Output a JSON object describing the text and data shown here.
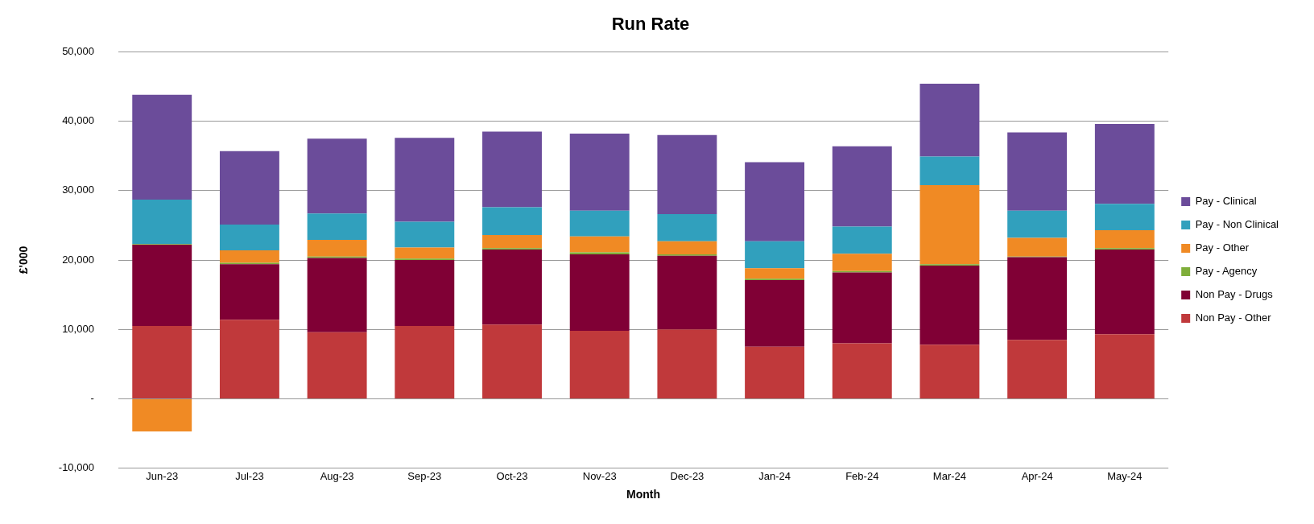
{
  "chart_data": {
    "type": "bar",
    "title": "Run Rate",
    "xlabel": "Month",
    "ylabel": "£'000",
    "categories": [
      "Jun-23",
      "Jul-23",
      "Aug-23",
      "Sep-23",
      "Oct-23",
      "Nov-23",
      "Dec-23",
      "Jan-24",
      "Feb-24",
      "Mar-24",
      "Apr-24",
      "May-24"
    ],
    "stacked": true,
    "grid": "y",
    "legend": "right",
    "ylim": [
      -10000,
      50000
    ],
    "yticks": [
      {
        "value": -10000,
        "label": "-10,000"
      },
      {
        "value": 0,
        "label": "-"
      },
      {
        "value": 10000,
        "label": "10,000"
      },
      {
        "value": 20000,
        "label": "20,000"
      },
      {
        "value": 30000,
        "label": "30,000"
      },
      {
        "value": 40000,
        "label": "40,000"
      },
      {
        "value": 50000,
        "label": "50,000"
      }
    ],
    "series": [
      {
        "name": "Non Pay - Other",
        "color": "#c0393b",
        "values": [
          10500,
          11400,
          9600,
          10500,
          10700,
          9800,
          10000,
          7500,
          8000,
          7800,
          8500,
          9300
        ]
      },
      {
        "name": "Non Pay - Drugs",
        "color": "#800035",
        "values": [
          11700,
          8000,
          10700,
          9500,
          10800,
          11000,
          10600,
          9600,
          10200,
          11400,
          11900,
          12200
        ]
      },
      {
        "name": "Pay - Agency",
        "color": "#7fae3a",
        "values": [
          100,
          200,
          200,
          200,
          200,
          300,
          200,
          200,
          200,
          200,
          100,
          200
        ]
      },
      {
        "name": "Pay - Other",
        "color": "#f08a24",
        "values": [
          -4700,
          1800,
          2400,
          1600,
          1900,
          2300,
          1900,
          1500,
          2500,
          11400,
          2700,
          2600
        ]
      },
      {
        "name": "Pay - Non Clinical",
        "color": "#31a0bd",
        "values": [
          6400,
          3700,
          3800,
          3700,
          4000,
          3700,
          3900,
          3900,
          3900,
          4100,
          3900,
          3800
        ]
      },
      {
        "name": "Pay - Clinical",
        "color": "#6b4c9a",
        "values": [
          15100,
          10600,
          10800,
          12100,
          10900,
          11100,
          11400,
          11400,
          11600,
          10500,
          11300,
          11500
        ]
      }
    ]
  }
}
